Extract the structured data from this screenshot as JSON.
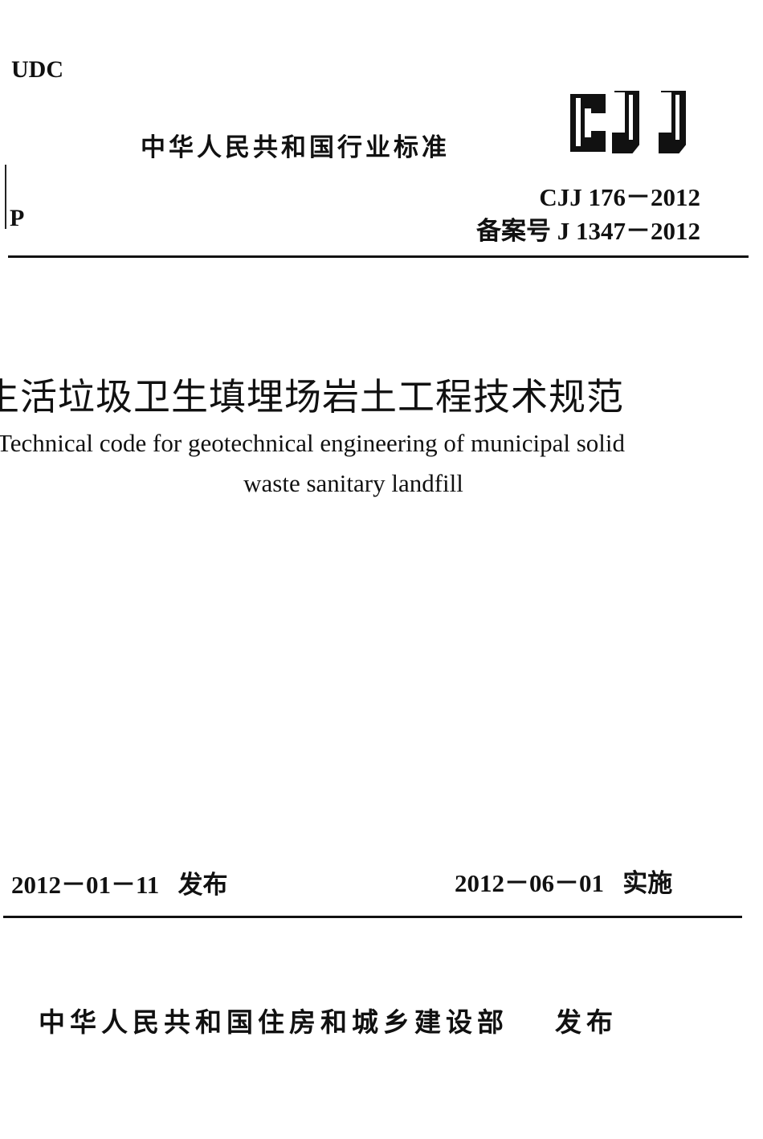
{
  "header": {
    "udc": "UDC",
    "standard_type": "中华人民共和国行业标准",
    "logo_text": "CJJ",
    "classification": "P",
    "standard_code": "CJJ 176－2012",
    "record_number": "备案号 J 1347－2012"
  },
  "title": {
    "chinese": "生活垃圾卫生填埋场岩土工程技术规范",
    "english_line1": "Technical code for geotechnical engineering of municipal solid",
    "english_line2": "waste sanitary landfill"
  },
  "dates": {
    "issue_date": "2012－01－11",
    "issue_label": "发布",
    "effective_date": "2012－06－01",
    "effective_label": "实施"
  },
  "footer": {
    "issuer": "中华人民共和国住房和城乡建设部",
    "issuer_label": "发布"
  }
}
